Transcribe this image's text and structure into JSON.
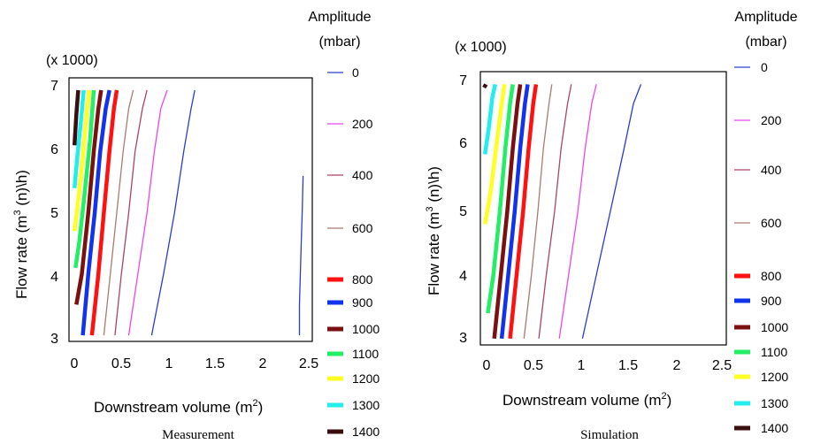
{
  "legend_levels": [
    {
      "label": "0",
      "color": "#2b3bd0",
      "weight": "thin"
    },
    {
      "label": "200",
      "color": "#ee44ee",
      "weight": "thin"
    },
    {
      "label": "400",
      "color": "#aa4466",
      "weight": "thin"
    },
    {
      "label": "600",
      "color": "#aa7a70",
      "weight": "thin"
    },
    {
      "label": "800",
      "color": "#ff1111",
      "weight": "thick"
    },
    {
      "label": "900",
      "color": "#1133ee",
      "weight": "thick"
    },
    {
      "label": "1000",
      "color": "#7a1010",
      "weight": "thick"
    },
    {
      "label": "1100",
      "color": "#22ee66",
      "weight": "thick"
    },
    {
      "label": "1200",
      "color": "#ffff22",
      "weight": "thick"
    },
    {
      "label": "1300",
      "color": "#22eeee",
      "weight": "thick"
    },
    {
      "label": "1400",
      "color": "#3a0e0e",
      "weight": "thick"
    }
  ],
  "chart_data": [
    {
      "type": "line",
      "caption": "Measurement",
      "xlabel": "Downstream volume (m",
      "xlabel_sup": "2",
      "xlabel_end": ")",
      "ylabel": "Flow rate (m",
      "ylabel_sup": "3",
      "ylabel_end": " (n)\\h)",
      "y_multiplier": "(x 1000)",
      "legend_title": [
        "Amplitude",
        "(mbar)"
      ],
      "xlim": [
        -0.05,
        2.6
      ],
      "ylim": [
        2.9,
        7.2
      ],
      "xticks": [
        "0",
        "0.5",
        "1",
        "1.5",
        "2",
        "2.5"
      ],
      "yticks": [
        "3",
        "4",
        "5",
        "6",
        "7"
      ],
      "series": [
        {
          "level": 0,
          "x": [
            0.85,
            0.98,
            1.1,
            1.2,
            1.28,
            1.32
          ],
          "y": [
            3.0,
            4.0,
            5.0,
            6.0,
            6.7,
            7.0
          ]
        },
        {
          "level": 0,
          "x": [
            2.46,
            2.46,
            2.47,
            2.48,
            2.49,
            2.5
          ],
          "y": [
            3.0,
            3.5,
            4.0,
            4.5,
            5.0,
            5.6
          ]
        },
        {
          "level": 1,
          "x": [
            0.6,
            0.7,
            0.8,
            0.88,
            0.95,
            1.02
          ],
          "y": [
            3.0,
            4.0,
            5.0,
            6.0,
            6.7,
            7.0
          ]
        },
        {
          "level": 2,
          "x": [
            0.45,
            0.52,
            0.6,
            0.67,
            0.75,
            0.8
          ],
          "y": [
            3.0,
            4.0,
            5.0,
            6.0,
            6.7,
            7.0
          ]
        },
        {
          "level": 3,
          "x": [
            0.33,
            0.4,
            0.47,
            0.54,
            0.6,
            0.65
          ],
          "y": [
            3.0,
            4.0,
            5.0,
            6.0,
            6.7,
            7.0
          ]
        },
        {
          "level": 4,
          "x": [
            0.2,
            0.27,
            0.33,
            0.39,
            0.44,
            0.47
          ],
          "y": [
            3.0,
            4.0,
            5.0,
            6.0,
            6.7,
            7.0
          ]
        },
        {
          "level": 5,
          "x": [
            0.1,
            0.16,
            0.23,
            0.29,
            0.35,
            0.39
          ],
          "y": [
            3.0,
            4.0,
            5.0,
            6.0,
            6.7,
            7.0
          ]
        },
        {
          "level": 6,
          "x": [
            0.03,
            0.09,
            0.16,
            0.22,
            0.27,
            0.3
          ],
          "y": [
            3.5,
            4.0,
            5.0,
            6.0,
            6.7,
            7.0
          ]
        },
        {
          "level": 7,
          "x": [
            0.02,
            0.06,
            0.12,
            0.18,
            0.22
          ],
          "y": [
            4.1,
            4.5,
            5.3,
            6.2,
            7.0
          ]
        },
        {
          "level": 8,
          "x": [
            0.01,
            0.05,
            0.1,
            0.14,
            0.17
          ],
          "y": [
            4.7,
            5.2,
            5.9,
            6.6,
            7.0
          ]
        },
        {
          "level": 9,
          "x": [
            0.01,
            0.04,
            0.08,
            0.11
          ],
          "y": [
            5.4,
            5.9,
            6.5,
            7.0
          ]
        },
        {
          "level": 10,
          "x": [
            0.01,
            0.03,
            0.05
          ],
          "y": [
            6.1,
            6.6,
            7.0
          ]
        }
      ]
    },
    {
      "type": "line",
      "caption": "Simulation",
      "xlabel": "Downstream volume (m",
      "xlabel_sup": "2",
      "xlabel_end": ")",
      "ylabel": "Flow rate (m",
      "ylabel_sup": "3",
      "ylabel_end": " (n)\\h)",
      "y_multiplier": "(x 1000)",
      "legend_title": [
        "Amplitude",
        "(mbar)"
      ],
      "xlim": [
        -0.05,
        2.6
      ],
      "ylim": [
        2.9,
        7.2
      ],
      "xticks": [
        "0",
        "0.5",
        "1",
        "1.5",
        "2",
        "2.5"
      ],
      "yticks": [
        "3",
        "4",
        "5",
        "6",
        "7"
      ],
      "series": [
        {
          "level": 0,
          "x": [
            1.05,
            1.2,
            1.35,
            1.5,
            1.6,
            1.68
          ],
          "y": [
            3.0,
            4.0,
            5.0,
            6.0,
            6.7,
            7.0
          ]
        },
        {
          "level": 1,
          "x": [
            0.8,
            0.9,
            1.0,
            1.08,
            1.15,
            1.2
          ],
          "y": [
            3.0,
            4.0,
            5.0,
            6.0,
            6.7,
            7.0
          ]
        },
        {
          "level": 2,
          "x": [
            0.58,
            0.66,
            0.75,
            0.82,
            0.89,
            0.93
          ],
          "y": [
            3.0,
            4.0,
            5.0,
            6.0,
            6.7,
            7.0
          ]
        },
        {
          "level": 3,
          "x": [
            0.42,
            0.5,
            0.57,
            0.63,
            0.69,
            0.72
          ],
          "y": [
            3.0,
            4.0,
            5.0,
            6.0,
            6.7,
            7.0
          ]
        },
        {
          "level": 4,
          "x": [
            0.27,
            0.34,
            0.41,
            0.47,
            0.52,
            0.55
          ],
          "y": [
            3.0,
            4.0,
            5.0,
            6.0,
            6.7,
            7.0
          ]
        },
        {
          "level": 5,
          "x": [
            0.18,
            0.25,
            0.32,
            0.38,
            0.43,
            0.46
          ],
          "y": [
            3.0,
            4.0,
            5.0,
            6.0,
            6.7,
            7.0
          ]
        },
        {
          "level": 6,
          "x": [
            0.1,
            0.17,
            0.24,
            0.3,
            0.35,
            0.38
          ],
          "y": [
            3.0,
            4.0,
            5.0,
            6.0,
            6.7,
            7.0
          ]
        },
        {
          "level": 7,
          "x": [
            0.03,
            0.09,
            0.16,
            0.22,
            0.27,
            0.3
          ],
          "y": [
            3.4,
            4.0,
            5.0,
            6.0,
            6.7,
            7.0
          ]
        },
        {
          "level": 8,
          "x": [
            0.0,
            0.06,
            0.12,
            0.18,
            0.21
          ],
          "y": [
            4.8,
            5.3,
            6.0,
            6.7,
            7.0
          ]
        },
        {
          "level": 9,
          "x": [
            0.0,
            0.04,
            0.08,
            0.11
          ],
          "y": [
            5.9,
            6.3,
            6.8,
            7.0
          ]
        },
        {
          "level": 10,
          "x": [
            -0.01,
            0.01
          ],
          "y": [
            6.95,
            7.0
          ]
        }
      ]
    }
  ]
}
